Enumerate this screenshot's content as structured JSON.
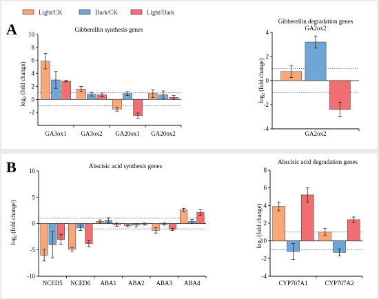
{
  "legend": [
    {
      "label": "Light/CK",
      "color": "#f7a779"
    },
    {
      "label": "Dark/CK",
      "color": "#6fa5d7"
    },
    {
      "label": "Light/Dark",
      "color": "#f16e73"
    }
  ],
  "panel_labels": {
    "a": "A",
    "b": "B"
  },
  "chart_data": [
    {
      "type": "bar",
      "title": "Gibberellin synthesis genes",
      "ylabel": "log2 (fold change)",
      "ylim": [
        -4,
        10
      ],
      "yticks": [
        -2,
        0,
        2,
        4,
        6,
        8,
        10
      ],
      "reflines": [
        1,
        -1
      ],
      "categories": [
        "GA3ox1",
        "GA3ox2",
        "GA20ox1",
        "GA20ox2"
      ],
      "series": [
        {
          "name": "Light/CK",
          "values": [
            5.9,
            1.6,
            -1.5,
            0.9
          ],
          "errors": [
            1.2,
            0.4,
            0.3,
            0.6
          ]
        },
        {
          "name": "Dark/CK",
          "values": [
            3.0,
            0.8,
            0.9,
            0.7
          ],
          "errors": [
            1.3,
            0.3,
            0.3,
            0.6
          ]
        },
        {
          "name": "Light/Dark",
          "values": [
            2.8,
            0.7,
            -2.5,
            0.3
          ],
          "errors": [
            0.1,
            0.3,
            0.4,
            0.3
          ]
        }
      ]
    },
    {
      "type": "bar",
      "title": "Gibberellin degradation genes",
      "subtitle": "GA2ox2",
      "ylabel": "log2 (fold change)",
      "ylim": [
        -4,
        4
      ],
      "yticks": [
        -4,
        -2,
        0,
        2,
        4
      ],
      "reflines": [
        1,
        -1
      ],
      "categories": [
        "GA2ox2"
      ],
      "series": [
        {
          "name": "Light/CK",
          "values": [
            0.75
          ],
          "errors": [
            0.5
          ]
        },
        {
          "name": "Dark/CK",
          "values": [
            3.2
          ],
          "errors": [
            0.5
          ]
        },
        {
          "name": "Light/Dark",
          "values": [
            -2.4
          ],
          "errors": [
            0.6
          ]
        }
      ]
    },
    {
      "type": "bar",
      "title": "Abscisic acid synthesis genes",
      "ylabel": "log2 (fold change)",
      "ylim": [
        -10,
        10
      ],
      "yticks": [
        -10,
        -5,
        0,
        5,
        10
      ],
      "reflines": [
        1,
        -1
      ],
      "categories": [
        "NCED5",
        "NCED6",
        "ABA1",
        "ABA2",
        "ABA3",
        "ABA4"
      ],
      "series": [
        {
          "name": "Light/CK",
          "values": [
            -6.0,
            -4.9,
            0.4,
            -0.4,
            -1.3,
            2.6
          ],
          "errors": [
            1.1,
            0.4,
            0.3,
            0.2,
            0.5,
            0.3
          ]
        },
        {
          "name": "Dark/CK",
          "values": [
            -4.0,
            -0.8,
            0.6,
            -0.3,
            -0.1,
            0.4
          ],
          "errors": [
            2.5,
            0.5,
            0.5,
            0.3,
            0.2,
            0.4
          ]
        },
        {
          "name": "Light/Dark",
          "values": [
            -3.0,
            -3.8,
            -0.2,
            -0.1,
            -1.1,
            2.1
          ],
          "errors": [
            0.9,
            0.6,
            0.3,
            0.2,
            0.2,
            0.5
          ]
        }
      ]
    },
    {
      "type": "bar",
      "title": "Abscisic acid degradation genes",
      "ylabel": "log2 (fold change)",
      "ylim": [
        -4,
        8
      ],
      "yticks": [
        -4,
        -2,
        0,
        2,
        4,
        6,
        8
      ],
      "reflines": [
        1,
        -1
      ],
      "categories": [
        "CYP707A1",
        "CYP707A2"
      ],
      "series": [
        {
          "name": "Light/CK",
          "values": [
            3.9,
            1.0
          ],
          "errors": [
            0.5,
            0.4
          ]
        },
        {
          "name": "Dark/CK",
          "values": [
            -1.2,
            -1.3
          ],
          "errors": [
            0.9,
            0.4
          ]
        },
        {
          "name": "Light/Dark",
          "values": [
            5.2,
            2.4
          ],
          "errors": [
            0.8,
            0.3
          ]
        }
      ]
    }
  ]
}
